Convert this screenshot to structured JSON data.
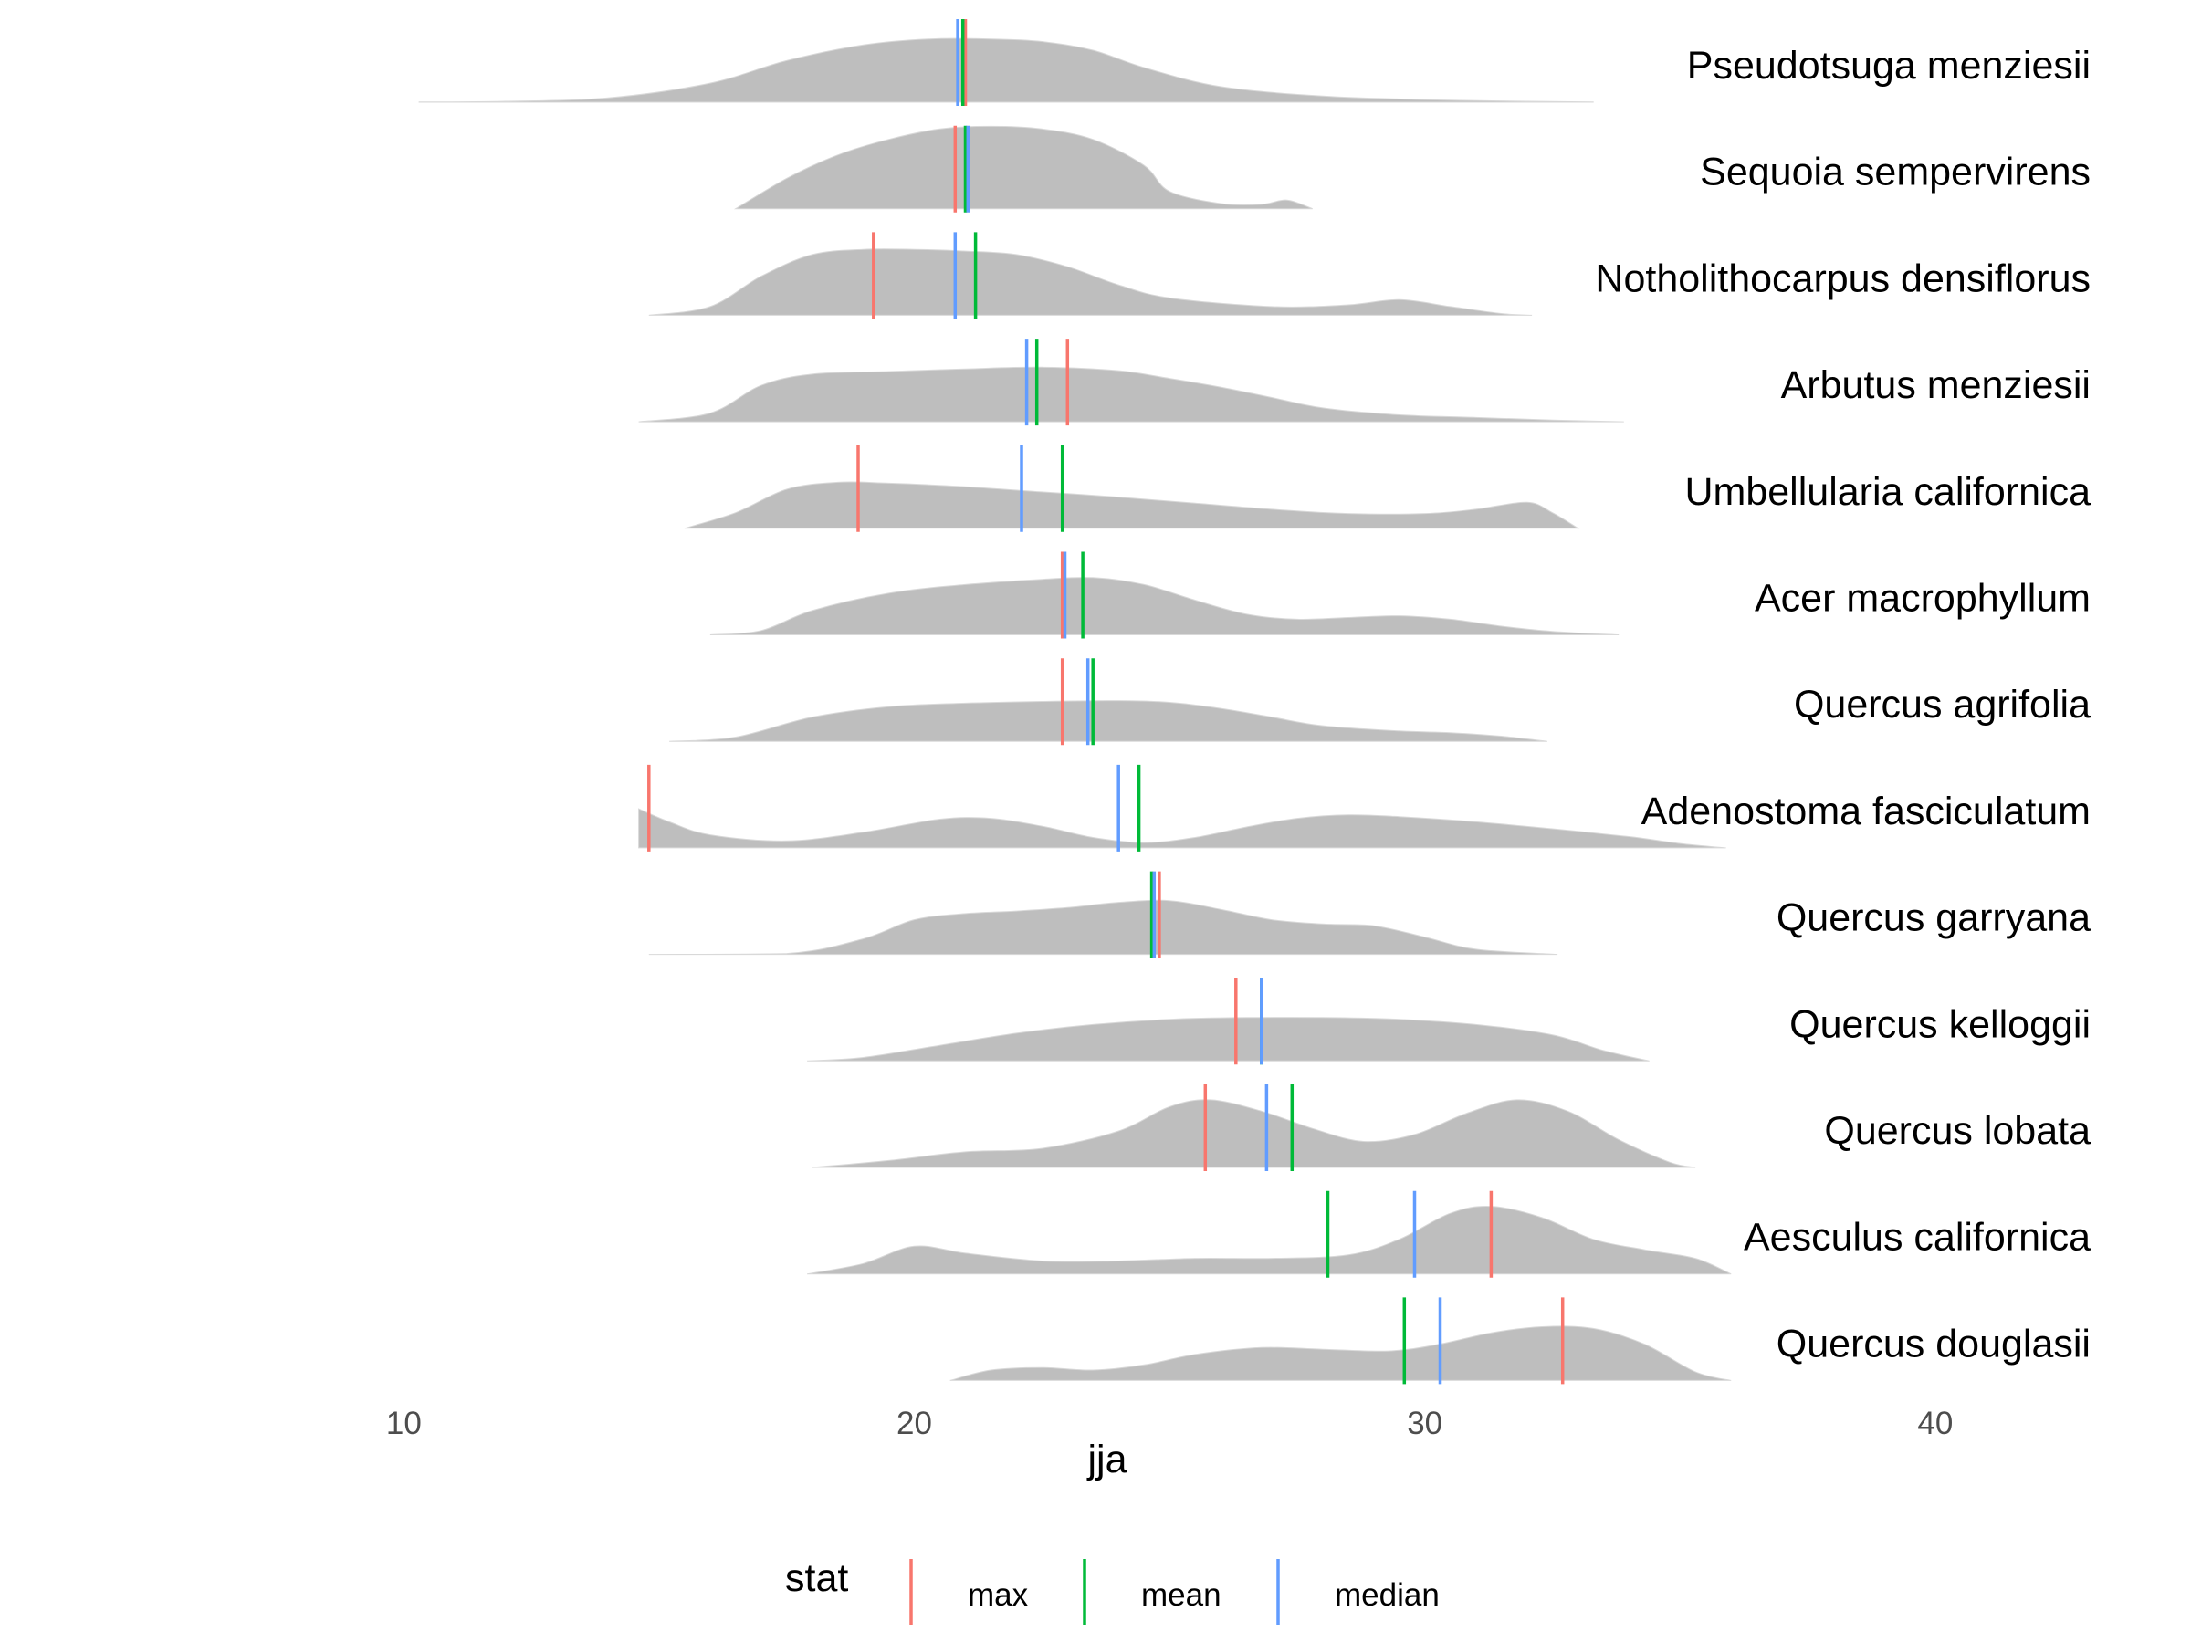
{
  "chart_data": {
    "type": "ridgeline",
    "title": "",
    "xlabel": "jja",
    "ylabel": "",
    "xlim": [
      9.6,
      43.4
    ],
    "x_ticks": [
      10,
      20,
      30,
      40
    ],
    "grid": false,
    "legend": {
      "title": "stat",
      "position": "bottom",
      "entries": [
        {
          "name": "max",
          "color": "#F8766D"
        },
        {
          "name": "mean",
          "color": "#00BA38"
        },
        {
          "name": "median",
          "color": "#619CFF"
        }
      ]
    },
    "density_fill": "#BEBEBE",
    "series": [
      {
        "name": "Pseudotsuga menziesii",
        "range": [
          10.3,
          33.3
        ],
        "density": [
          [
            10.3,
            0.002
          ],
          [
            12.0,
            0.01
          ],
          [
            14.0,
            0.05
          ],
          [
            16.0,
            0.22
          ],
          [
            17.5,
            0.48
          ],
          [
            19.0,
            0.66
          ],
          [
            20.3,
            0.73
          ],
          [
            21.5,
            0.73
          ],
          [
            22.5,
            0.7
          ],
          [
            23.5,
            0.6
          ],
          [
            24.5,
            0.4
          ],
          [
            26.0,
            0.18
          ],
          [
            28.0,
            0.07
          ],
          [
            30.0,
            0.03
          ],
          [
            32.0,
            0.01
          ],
          [
            33.3,
            0.002
          ]
        ],
        "stats": {
          "max": 21.0,
          "mean": 20.95,
          "median": 20.85
        }
      },
      {
        "name": "Sequoia sempervirens",
        "range": [
          16.5,
          27.8
        ],
        "density": [
          [
            16.5,
            0.0
          ],
          [
            17.5,
            0.35
          ],
          [
            18.5,
            0.62
          ],
          [
            19.5,
            0.8
          ],
          [
            20.5,
            0.92
          ],
          [
            21.5,
            0.95
          ],
          [
            22.5,
            0.92
          ],
          [
            23.5,
            0.8
          ],
          [
            24.5,
            0.5
          ],
          [
            25.0,
            0.2
          ],
          [
            26.0,
            0.06
          ],
          [
            26.8,
            0.05
          ],
          [
            27.3,
            0.1
          ],
          [
            27.8,
            0.0
          ]
        ],
        "stats": {
          "max": 20.8,
          "mean": 21.0,
          "median": 21.05
        }
      },
      {
        "name": "Notholithocarpus densiflorus",
        "range": [
          14.8,
          32.1
        ],
        "density": [
          [
            14.8,
            0.0
          ],
          [
            16.0,
            0.1
          ],
          [
            17.0,
            0.45
          ],
          [
            18.0,
            0.7
          ],
          [
            19.0,
            0.76
          ],
          [
            20.0,
            0.76
          ],
          [
            21.0,
            0.74
          ],
          [
            22.0,
            0.7
          ],
          [
            23.0,
            0.56
          ],
          [
            24.0,
            0.35
          ],
          [
            25.0,
            0.2
          ],
          [
            27.0,
            0.1
          ],
          [
            28.5,
            0.12
          ],
          [
            29.5,
            0.18
          ],
          [
            30.5,
            0.1
          ],
          [
            31.5,
            0.02
          ],
          [
            32.1,
            0.0
          ]
        ],
        "stats": {
          "max": 19.2,
          "mean": 21.2,
          "median": 20.8
        }
      },
      {
        "name": "Arbutus menziesii",
        "range": [
          14.6,
          33.9
        ],
        "density": [
          [
            14.6,
            0.0
          ],
          [
            16.0,
            0.1
          ],
          [
            17.0,
            0.42
          ],
          [
            18.0,
            0.55
          ],
          [
            19.5,
            0.58
          ],
          [
            21.0,
            0.61
          ],
          [
            22.5,
            0.63
          ],
          [
            24.0,
            0.59
          ],
          [
            25.0,
            0.5
          ],
          [
            26.0,
            0.4
          ],
          [
            27.0,
            0.28
          ],
          [
            28.0,
            0.16
          ],
          [
            29.5,
            0.08
          ],
          [
            31.0,
            0.05
          ],
          [
            32.5,
            0.02
          ],
          [
            33.9,
            0.0
          ]
        ],
        "stats": {
          "max": 23.0,
          "mean": 22.4,
          "median": 22.2
        }
      },
      {
        "name": "Umbellularia californica",
        "range": [
          15.5,
          33.0
        ],
        "density": [
          [
            15.5,
            0.0
          ],
          [
            16.5,
            0.18
          ],
          [
            17.5,
            0.45
          ],
          [
            18.5,
            0.53
          ],
          [
            19.5,
            0.52
          ],
          [
            21.0,
            0.48
          ],
          [
            22.5,
            0.42
          ],
          [
            24.0,
            0.36
          ],
          [
            25.5,
            0.29
          ],
          [
            27.0,
            0.22
          ],
          [
            28.5,
            0.17
          ],
          [
            30.0,
            0.17
          ],
          [
            31.0,
            0.22
          ],
          [
            32.0,
            0.3
          ],
          [
            32.5,
            0.18
          ],
          [
            33.0,
            0.0
          ]
        ],
        "stats": {
          "max": 18.9,
          "mean": 22.9,
          "median": 22.1
        }
      },
      {
        "name": "Acer macrophyllum",
        "range": [
          16.0,
          33.8
        ],
        "density": [
          [
            16.0,
            0.0
          ],
          [
            17.0,
            0.05
          ],
          [
            18.0,
            0.28
          ],
          [
            19.5,
            0.48
          ],
          [
            21.0,
            0.58
          ],
          [
            22.5,
            0.64
          ],
          [
            23.5,
            0.66
          ],
          [
            24.5,
            0.58
          ],
          [
            25.5,
            0.4
          ],
          [
            26.5,
            0.24
          ],
          [
            27.5,
            0.18
          ],
          [
            28.5,
            0.2
          ],
          [
            29.5,
            0.22
          ],
          [
            30.5,
            0.18
          ],
          [
            31.5,
            0.1
          ],
          [
            32.5,
            0.04
          ],
          [
            33.8,
            0.0
          ]
        ],
        "stats": {
          "max": 22.9,
          "mean": 23.3,
          "median": 22.95
        }
      },
      {
        "name": "Quercus agrifolia",
        "range": [
          15.2,
          32.4
        ],
        "density": [
          [
            15.2,
            0.0
          ],
          [
            16.5,
            0.05
          ],
          [
            18.0,
            0.28
          ],
          [
            19.5,
            0.4
          ],
          [
            21.0,
            0.44
          ],
          [
            22.5,
            0.46
          ],
          [
            24.0,
            0.47
          ],
          [
            25.0,
            0.45
          ],
          [
            26.0,
            0.38
          ],
          [
            27.0,
            0.28
          ],
          [
            28.0,
            0.18
          ],
          [
            29.5,
            0.12
          ],
          [
            30.5,
            0.1
          ],
          [
            31.5,
            0.06
          ],
          [
            32.4,
            0.0
          ]
        ],
        "stats": {
          "max": 22.9,
          "mean": 23.5,
          "median": 23.4
        }
      },
      {
        "name": "Adenostoma fasciculatum",
        "range": [
          14.6,
          35.9
        ],
        "density": [
          [
            14.6,
            0.45
          ],
          [
            15.2,
            0.3
          ],
          [
            16.0,
            0.15
          ],
          [
            17.5,
            0.08
          ],
          [
            19.0,
            0.18
          ],
          [
            20.5,
            0.33
          ],
          [
            21.5,
            0.34
          ],
          [
            22.5,
            0.25
          ],
          [
            23.5,
            0.12
          ],
          [
            24.5,
            0.06
          ],
          [
            25.5,
            0.12
          ],
          [
            26.5,
            0.24
          ],
          [
            27.5,
            0.34
          ],
          [
            28.5,
            0.38
          ],
          [
            29.5,
            0.36
          ],
          [
            31.0,
            0.3
          ],
          [
            32.5,
            0.22
          ],
          [
            34.0,
            0.13
          ],
          [
            35.0,
            0.05
          ],
          [
            35.9,
            0.0
          ]
        ],
        "stats": {
          "max": 14.8,
          "mean": 24.4,
          "median": 24.0
        }
      },
      {
        "name": "Quercus garryana",
        "range": [
          14.8,
          32.6
        ],
        "density": [
          [
            14.8,
            0.0
          ],
          [
            17.5,
            0.01
          ],
          [
            19.0,
            0.18
          ],
          [
            20.0,
            0.4
          ],
          [
            21.0,
            0.47
          ],
          [
            22.0,
            0.5
          ],
          [
            23.0,
            0.54
          ],
          [
            24.0,
            0.6
          ],
          [
            25.0,
            0.62
          ],
          [
            26.0,
            0.52
          ],
          [
            27.0,
            0.4
          ],
          [
            28.0,
            0.35
          ],
          [
            29.0,
            0.33
          ],
          [
            30.0,
            0.2
          ],
          [
            31.0,
            0.06
          ],
          [
            32.6,
            0.0
          ]
        ],
        "stats": {
          "max": 24.8,
          "mean": 24.65,
          "median": 24.7
        }
      },
      {
        "name": "Quercus kelloggii",
        "range": [
          17.9,
          34.4
        ],
        "density": [
          [
            17.9,
            0.0
          ],
          [
            19.0,
            0.04
          ],
          [
            20.5,
            0.18
          ],
          [
            22.0,
            0.32
          ],
          [
            23.5,
            0.42
          ],
          [
            25.0,
            0.48
          ],
          [
            26.5,
            0.5
          ],
          [
            28.0,
            0.5
          ],
          [
            29.5,
            0.48
          ],
          [
            31.0,
            0.42
          ],
          [
            32.5,
            0.3
          ],
          [
            33.5,
            0.12
          ],
          [
            34.4,
            0.0
          ]
        ],
        "stats": {
          "max": 26.3,
          "mean": 26.8,
          "median": 26.8
        }
      },
      {
        "name": "Quercus lobata",
        "range": [
          18.0,
          35.3
        ],
        "density": [
          [
            18.0,
            0.0
          ],
          [
            19.5,
            0.08
          ],
          [
            21.0,
            0.18
          ],
          [
            22.5,
            0.22
          ],
          [
            24.0,
            0.42
          ],
          [
            25.0,
            0.7
          ],
          [
            25.8,
            0.78
          ],
          [
            26.8,
            0.65
          ],
          [
            27.8,
            0.45
          ],
          [
            28.8,
            0.3
          ],
          [
            29.8,
            0.38
          ],
          [
            30.8,
            0.62
          ],
          [
            31.8,
            0.78
          ],
          [
            32.8,
            0.65
          ],
          [
            33.8,
            0.32
          ],
          [
            34.8,
            0.06
          ],
          [
            35.3,
            0.0
          ]
        ],
        "stats": {
          "max": 25.7,
          "mean": 27.4,
          "median": 26.9
        }
      },
      {
        "name": "Aesculus californica",
        "range": [
          17.9,
          36.0
        ],
        "density": [
          [
            17.9,
            0.0
          ],
          [
            19.0,
            0.12
          ],
          [
            20.0,
            0.32
          ],
          [
            21.0,
            0.24
          ],
          [
            22.5,
            0.15
          ],
          [
            24.0,
            0.15
          ],
          [
            25.5,
            0.18
          ],
          [
            27.0,
            0.18
          ],
          [
            28.5,
            0.22
          ],
          [
            29.5,
            0.4
          ],
          [
            30.5,
            0.7
          ],
          [
            31.3,
            0.78
          ],
          [
            32.3,
            0.65
          ],
          [
            33.3,
            0.4
          ],
          [
            34.3,
            0.28
          ],
          [
            35.3,
            0.18
          ],
          [
            36.0,
            0.0
          ]
        ],
        "stats": {
          "max": 31.3,
          "mean": 28.1,
          "median": 29.8
        }
      },
      {
        "name": "Quercus douglasii",
        "range": [
          20.7,
          36.0
        ],
        "density": [
          [
            20.7,
            0.0
          ],
          [
            21.5,
            0.12
          ],
          [
            22.5,
            0.15
          ],
          [
            23.5,
            0.12
          ],
          [
            24.5,
            0.18
          ],
          [
            25.5,
            0.3
          ],
          [
            26.8,
            0.38
          ],
          [
            28.0,
            0.36
          ],
          [
            29.3,
            0.34
          ],
          [
            30.3,
            0.42
          ],
          [
            31.3,
            0.55
          ],
          [
            32.3,
            0.62
          ],
          [
            33.3,
            0.6
          ],
          [
            34.3,
            0.42
          ],
          [
            35.3,
            0.1
          ],
          [
            36.0,
            0.0
          ]
        ],
        "stats": {
          "max": 32.7,
          "mean": 29.6,
          "median": 30.3
        }
      }
    ]
  }
}
